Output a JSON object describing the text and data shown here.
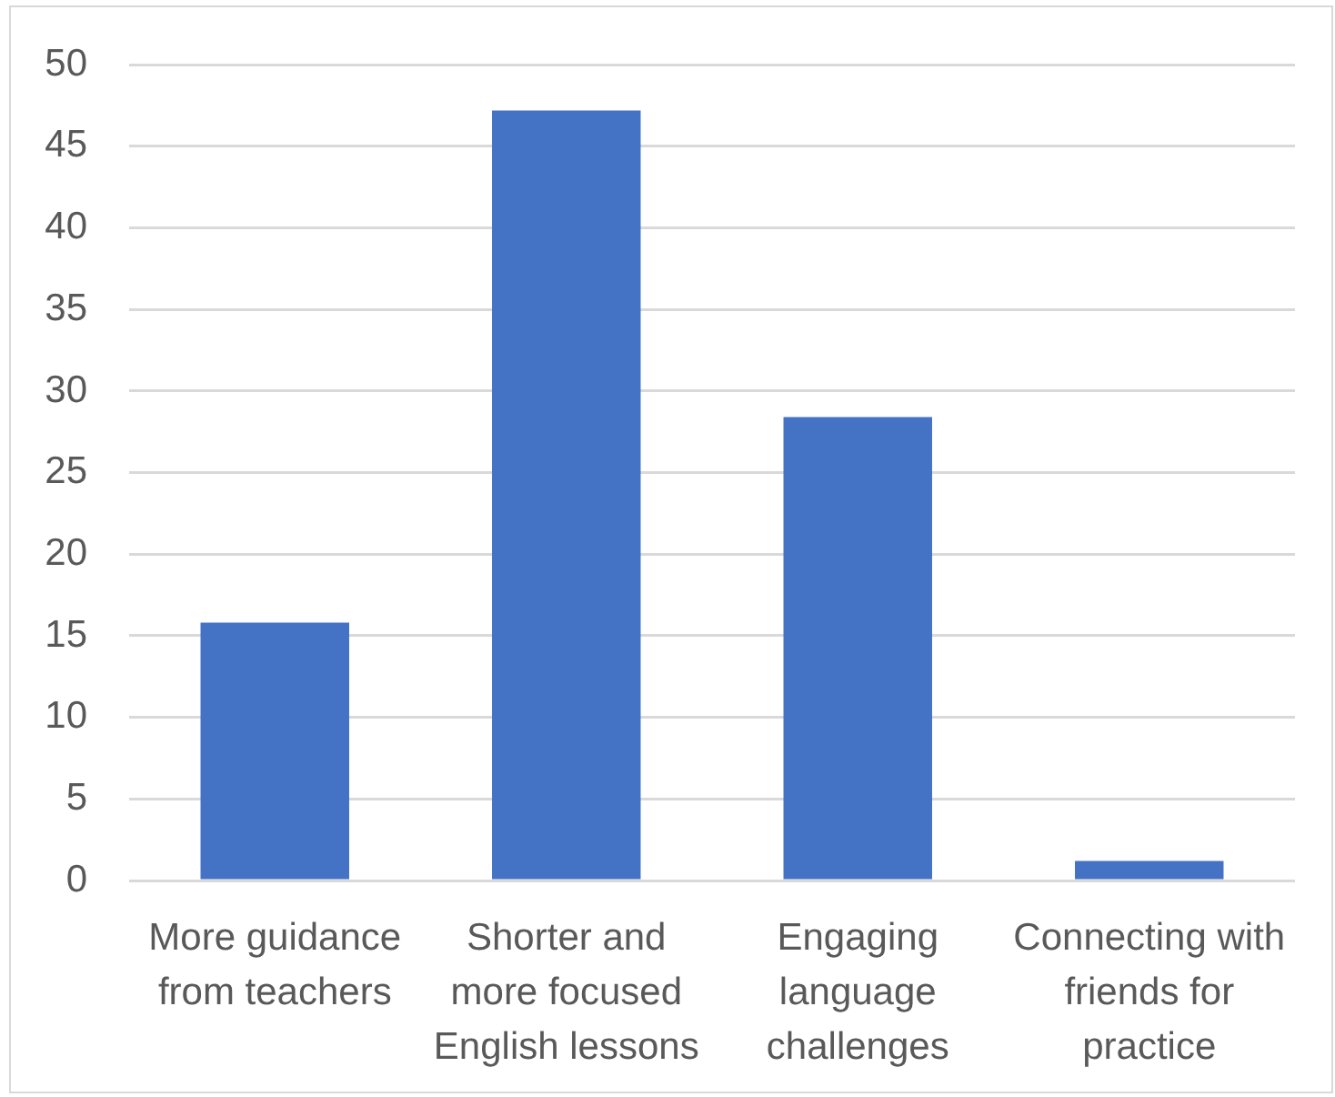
{
  "chart_data": {
    "type": "bar",
    "categories": [
      "More guidance from teachers",
      "Shorter and more focused English lessons",
      "Engaging language challenges",
      "Connecting with friends for practice"
    ],
    "values": [
      15.8,
      47.2,
      28.4,
      1.2
    ],
    "color": "#4472c4",
    "ylim": [
      0,
      50
    ],
    "yticks": [
      0,
      5,
      10,
      15,
      20,
      25,
      30,
      35,
      40,
      45,
      50
    ],
    "grid": "y"
  }
}
